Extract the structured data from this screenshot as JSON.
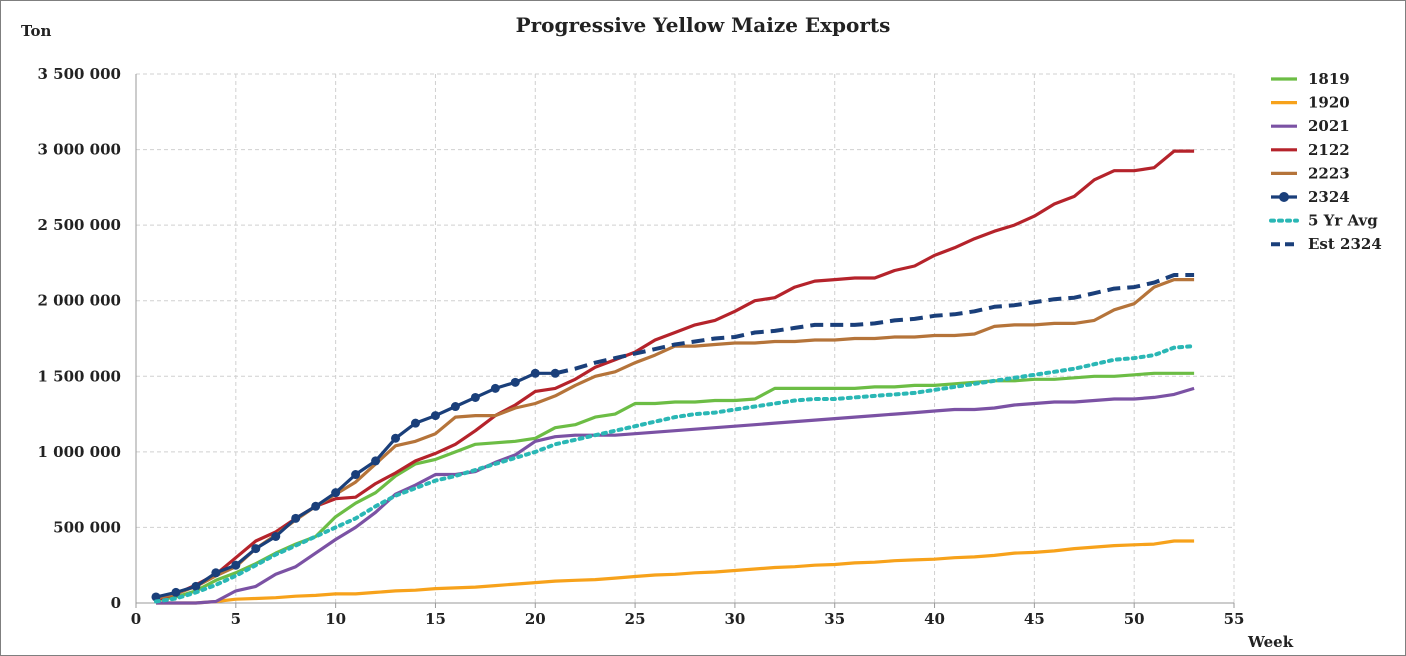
{
  "chart_data": {
    "type": "line",
    "title": "Progressive Yellow Maize Exports",
    "ylabel": "Ton",
    "xlabel": "Week",
    "xlim": [
      0,
      55
    ],
    "ylim": [
      0,
      3500000
    ],
    "x_ticks": [
      0,
      5,
      10,
      15,
      20,
      25,
      30,
      35,
      40,
      45,
      50,
      55
    ],
    "x_tick_labels": [
      "0",
      "5",
      "10",
      "15",
      "20",
      "25",
      "30",
      "35",
      "40",
      "45",
      "50",
      "55"
    ],
    "y_ticks": [
      0,
      500000,
      1000000,
      1500000,
      2000000,
      2500000,
      3000000,
      3500000
    ],
    "y_tick_labels": [
      "0",
      "500 000",
      "1 000 000",
      "1 500 000",
      "2 000 000",
      "2 500 000",
      "3 000 000",
      "3 500 000"
    ],
    "grid": true,
    "legend_position": "right",
    "series": [
      {
        "name": "1819",
        "color": "#6cbd45",
        "style": "solid",
        "x": [
          1,
          2,
          3,
          4,
          5,
          6,
          7,
          8,
          9,
          10,
          11,
          12,
          13,
          14,
          15,
          16,
          17,
          18,
          19,
          20,
          21,
          22,
          23,
          24,
          25,
          26,
          27,
          28,
          29,
          30,
          31,
          32,
          33,
          34,
          35,
          36,
          37,
          38,
          39,
          40,
          41,
          42,
          43,
          44,
          45,
          46,
          47,
          48,
          49,
          50,
          51,
          52,
          53
        ],
        "values": [
          20000,
          40000,
          80000,
          150000,
          200000,
          260000,
          330000,
          390000,
          440000,
          570000,
          660000,
          730000,
          840000,
          920000,
          950000,
          1000000,
          1050000,
          1060000,
          1070000,
          1090000,
          1160000,
          1180000,
          1230000,
          1250000,
          1320000,
          1320000,
          1330000,
          1330000,
          1340000,
          1340000,
          1350000,
          1420000,
          1420000,
          1420000,
          1420000,
          1420000,
          1430000,
          1430000,
          1440000,
          1440000,
          1450000,
          1460000,
          1470000,
          1470000,
          1480000,
          1480000,
          1490000,
          1500000,
          1500000,
          1510000,
          1520000,
          1520000,
          1520000
        ]
      },
      {
        "name": "1920",
        "color": "#f7a21b",
        "style": "solid",
        "x": [
          1,
          2,
          3,
          4,
          5,
          6,
          7,
          8,
          9,
          10,
          11,
          12,
          13,
          14,
          15,
          16,
          17,
          18,
          19,
          20,
          21,
          22,
          23,
          24,
          25,
          26,
          27,
          28,
          29,
          30,
          31,
          32,
          33,
          34,
          35,
          36,
          37,
          38,
          39,
          40,
          41,
          42,
          43,
          44,
          45,
          46,
          47,
          48,
          49,
          50,
          51,
          52,
          53
        ],
        "values": [
          0,
          0,
          0,
          10000,
          25000,
          30000,
          35000,
          45000,
          50000,
          60000,
          60000,
          70000,
          80000,
          85000,
          95000,
          100000,
          105000,
          115000,
          125000,
          135000,
          145000,
          150000,
          155000,
          165000,
          175000,
          185000,
          190000,
          200000,
          205000,
          215000,
          225000,
          235000,
          240000,
          250000,
          255000,
          265000,
          270000,
          280000,
          285000,
          290000,
          300000,
          305000,
          315000,
          330000,
          335000,
          345000,
          360000,
          370000,
          380000,
          385000,
          390000,
          410000,
          410000
        ]
      },
      {
        "name": "2021",
        "color": "#7b52a4",
        "style": "solid",
        "x": [
          1,
          2,
          3,
          4,
          5,
          6,
          7,
          8,
          9,
          10,
          11,
          12,
          13,
          14,
          15,
          16,
          17,
          18,
          19,
          20,
          21,
          22,
          23,
          24,
          25,
          26,
          27,
          28,
          29,
          30,
          31,
          32,
          33,
          34,
          35,
          36,
          37,
          38,
          39,
          40,
          41,
          42,
          43,
          44,
          45,
          46,
          47,
          48,
          49,
          50,
          51,
          52,
          53
        ],
        "values": [
          0,
          0,
          0,
          10000,
          80000,
          110000,
          190000,
          240000,
          330000,
          420000,
          500000,
          600000,
          720000,
          780000,
          850000,
          850000,
          870000,
          930000,
          980000,
          1070000,
          1100000,
          1110000,
          1110000,
          1110000,
          1120000,
          1130000,
          1140000,
          1150000,
          1160000,
          1170000,
          1180000,
          1190000,
          1200000,
          1210000,
          1220000,
          1230000,
          1240000,
          1250000,
          1260000,
          1270000,
          1280000,
          1280000,
          1290000,
          1310000,
          1320000,
          1330000,
          1330000,
          1340000,
          1350000,
          1350000,
          1360000,
          1380000,
          1420000
        ]
      },
      {
        "name": "2122",
        "color": "#b5232b",
        "style": "solid",
        "x": [
          1,
          2,
          3,
          4,
          5,
          6,
          7,
          8,
          9,
          10,
          11,
          12,
          13,
          14,
          15,
          16,
          17,
          18,
          19,
          20,
          21,
          22,
          23,
          24,
          25,
          26,
          27,
          28,
          29,
          30,
          31,
          32,
          33,
          34,
          35,
          36,
          37,
          38,
          39,
          40,
          41,
          42,
          43,
          44,
          45,
          46,
          47,
          48,
          49,
          50,
          51,
          52,
          53
        ],
        "values": [
          20000,
          60000,
          120000,
          190000,
          300000,
          410000,
          470000,
          560000,
          640000,
          690000,
          700000,
          790000,
          860000,
          940000,
          990000,
          1050000,
          1140000,
          1240000,
          1310000,
          1400000,
          1420000,
          1480000,
          1560000,
          1610000,
          1660000,
          1740000,
          1790000,
          1840000,
          1870000,
          1930000,
          2000000,
          2020000,
          2090000,
          2130000,
          2140000,
          2150000,
          2150000,
          2200000,
          2230000,
          2300000,
          2350000,
          2410000,
          2460000,
          2500000,
          2560000,
          2640000,
          2690000,
          2800000,
          2860000,
          2860000,
          2880000,
          2990000,
          2990000
        ]
      },
      {
        "name": "2223",
        "color": "#b5743a",
        "style": "solid",
        "x": [
          1,
          2,
          3,
          4,
          5,
          6,
          7,
          8,
          9,
          10,
          11,
          12,
          13,
          14,
          15,
          16,
          17,
          18,
          19,
          20,
          21,
          22,
          23,
          24,
          25,
          26,
          27,
          28,
          29,
          30,
          31,
          32,
          33,
          34,
          35,
          36,
          37,
          38,
          39,
          40,
          41,
          42,
          43,
          44,
          45,
          46,
          47,
          48,
          49,
          50,
          51,
          52,
          53
        ],
        "values": [
          30000,
          60000,
          110000,
          180000,
          240000,
          360000,
          450000,
          550000,
          640000,
          720000,
          800000,
          920000,
          1040000,
          1070000,
          1120000,
          1230000,
          1240000,
          1240000,
          1290000,
          1320000,
          1370000,
          1440000,
          1500000,
          1530000,
          1590000,
          1640000,
          1700000,
          1700000,
          1710000,
          1720000,
          1720000,
          1730000,
          1730000,
          1740000,
          1740000,
          1750000,
          1750000,
          1760000,
          1760000,
          1770000,
          1770000,
          1780000,
          1830000,
          1840000,
          1840000,
          1850000,
          1850000,
          1870000,
          1940000,
          1980000,
          2090000,
          2140000,
          2140000
        ]
      },
      {
        "name": "2324",
        "color": "#1a3f7a",
        "style": "marker",
        "x": [
          1,
          2,
          3,
          4,
          5,
          6,
          7,
          8,
          9,
          10,
          11,
          12,
          13,
          14,
          15,
          16,
          17,
          18,
          19,
          20,
          21
        ],
        "values": [
          40000,
          70000,
          110000,
          200000,
          250000,
          360000,
          440000,
          560000,
          640000,
          730000,
          850000,
          940000,
          1090000,
          1190000,
          1240000,
          1300000,
          1360000,
          1420000,
          1460000,
          1520000,
          1520000
        ]
      },
      {
        "name": "5 Yr Avg",
        "color": "#2ab7b5",
        "style": "dotted",
        "x": [
          1,
          2,
          3,
          4,
          5,
          6,
          7,
          8,
          9,
          10,
          11,
          12,
          13,
          14,
          15,
          16,
          17,
          18,
          19,
          20,
          21,
          22,
          23,
          24,
          25,
          26,
          27,
          28,
          29,
          30,
          31,
          32,
          33,
          34,
          35,
          36,
          37,
          38,
          39,
          40,
          41,
          42,
          43,
          44,
          45,
          46,
          47,
          48,
          49,
          50,
          51,
          52,
          53
        ],
        "values": [
          10000,
          30000,
          70000,
          120000,
          180000,
          250000,
          320000,
          380000,
          440000,
          500000,
          560000,
          640000,
          710000,
          760000,
          810000,
          840000,
          880000,
          920000,
          960000,
          1000000,
          1050000,
          1080000,
          1110000,
          1140000,
          1170000,
          1200000,
          1230000,
          1250000,
          1260000,
          1280000,
          1300000,
          1320000,
          1340000,
          1350000,
          1350000,
          1360000,
          1370000,
          1380000,
          1390000,
          1410000,
          1430000,
          1450000,
          1470000,
          1490000,
          1510000,
          1530000,
          1550000,
          1580000,
          1610000,
          1620000,
          1640000,
          1690000,
          1700000
        ]
      },
      {
        "name": "Est 2324",
        "color": "#1a3f7a",
        "style": "dashed",
        "x": [
          21,
          22,
          23,
          24,
          25,
          26,
          27,
          28,
          29,
          30,
          31,
          32,
          33,
          34,
          35,
          36,
          37,
          38,
          39,
          40,
          41,
          42,
          43,
          44,
          45,
          46,
          47,
          48,
          49,
          50,
          51,
          52,
          53
        ],
        "values": [
          1520000,
          1550000,
          1590000,
          1620000,
          1650000,
          1680000,
          1710000,
          1730000,
          1750000,
          1760000,
          1790000,
          1800000,
          1820000,
          1840000,
          1840000,
          1840000,
          1850000,
          1870000,
          1880000,
          1900000,
          1910000,
          1930000,
          1960000,
          1970000,
          1990000,
          2010000,
          2020000,
          2050000,
          2080000,
          2090000,
          2120000,
          2170000,
          2170000
        ]
      }
    ]
  }
}
